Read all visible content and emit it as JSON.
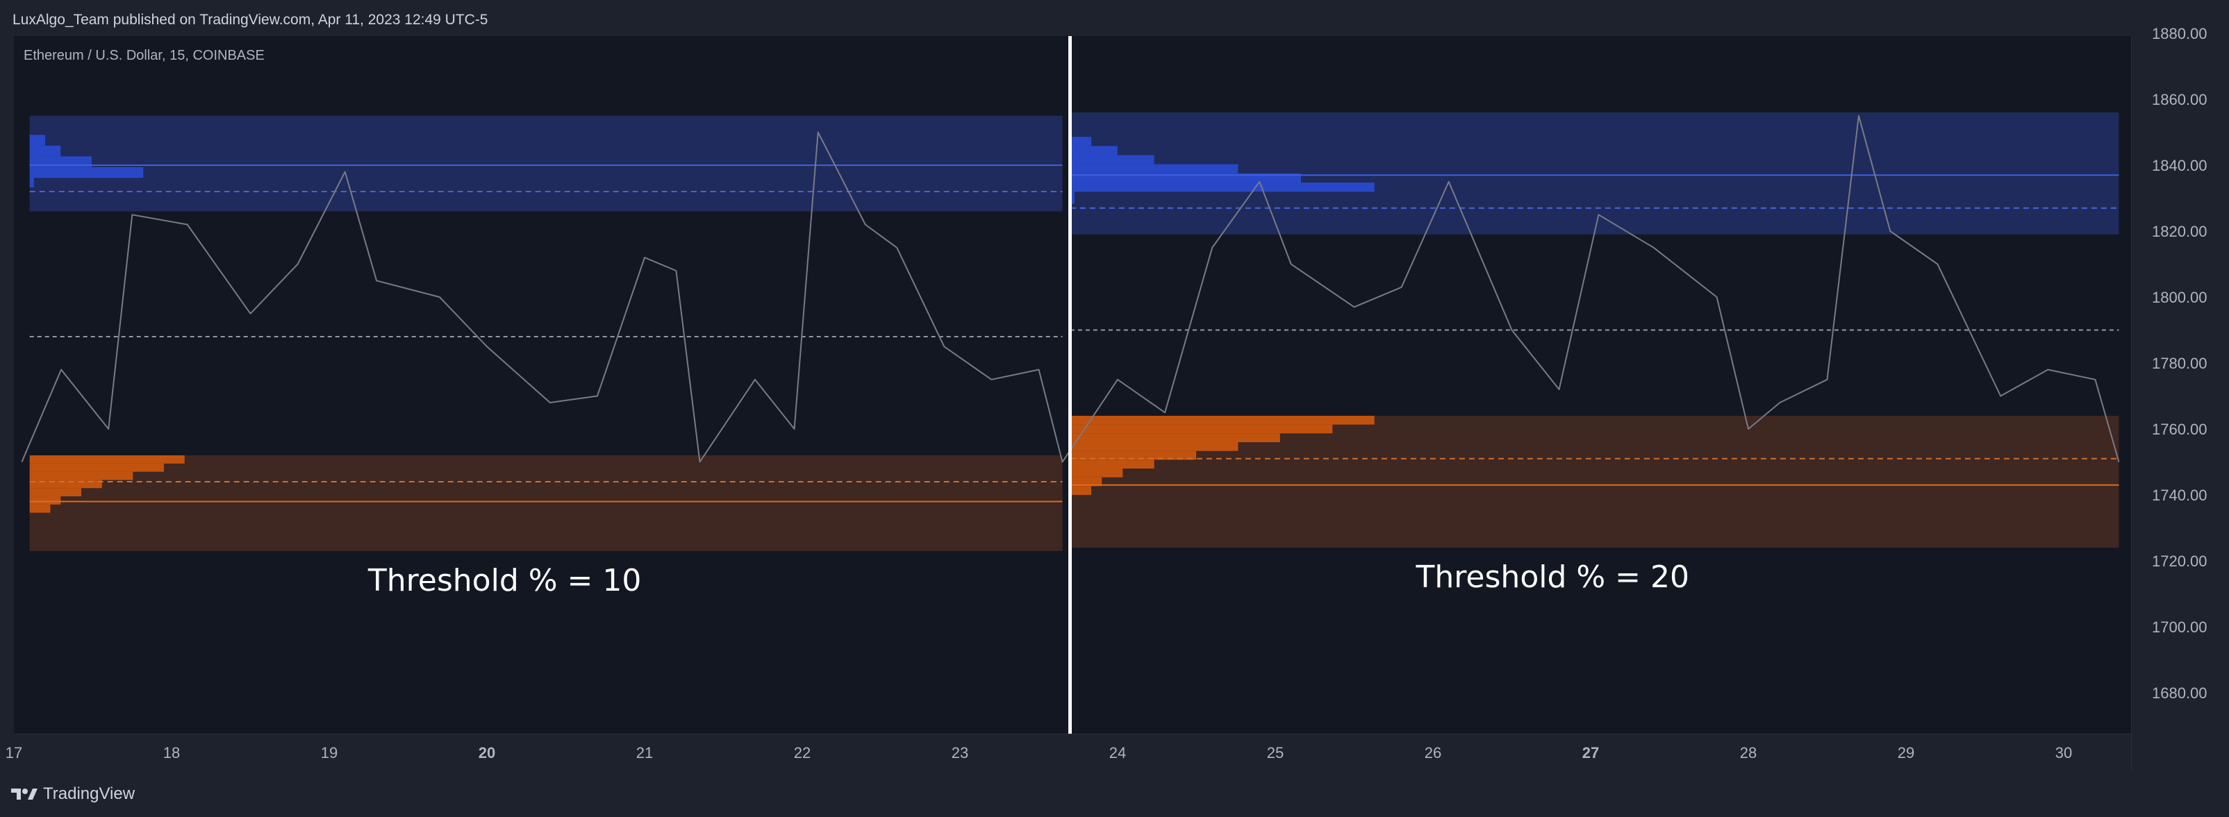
{
  "header": {
    "published_text": "LuxAlgo_Team published on TradingView.com, Apr 11, 2023 12:49 UTC-5"
  },
  "footer": {
    "brand": "TradingView",
    "logo_icon": "tradingview-logo-icon"
  },
  "colors": {
    "background": "#131722",
    "blue_zone": "#1f2b5c",
    "blue_profile": "#2848c8",
    "orange_zone": "#3f2722",
    "orange_profile": "#c2530f",
    "price_line": "#787b86",
    "divider": "#ffffff"
  },
  "chart_data": {
    "type": "line",
    "symbol_legend": "Ethereum / U.S. Dollar, 15, COINBASE",
    "y_ticks": [
      1880,
      1860,
      1840,
      1820,
      1800,
      1780,
      1760,
      1740,
      1720,
      1700,
      1680
    ],
    "ylim": [
      1670,
      1885
    ],
    "x_ticks": [
      {
        "label": "17",
        "bold": false
      },
      {
        "label": "18",
        "bold": false
      },
      {
        "label": "19",
        "bold": false
      },
      {
        "label": "20",
        "bold": true
      },
      {
        "label": "21",
        "bold": false
      },
      {
        "label": "22",
        "bold": false
      },
      {
        "label": "23",
        "bold": false
      },
      {
        "label": "24",
        "bold": false
      },
      {
        "label": "25",
        "bold": false
      },
      {
        "label": "26",
        "bold": false
      },
      {
        "label": "27",
        "bold": true
      },
      {
        "label": "28",
        "bold": false
      },
      {
        "label": "29",
        "bold": false
      },
      {
        "label": "30",
        "bold": false
      }
    ],
    "price_series": {
      "x": [
        17.05,
        17.3,
        17.6,
        17.75,
        18.1,
        18.5,
        18.8,
        19.1,
        19.3,
        19.7,
        20.0,
        20.4,
        20.7,
        21.0,
        21.2,
        21.35,
        21.7,
        21.95,
        22.1,
        22.4,
        22.6,
        22.9,
        23.2,
        23.5,
        23.65,
        24.0,
        24.3,
        24.6,
        24.9,
        25.1,
        25.5,
        25.8,
        26.1,
        26.5,
        26.8,
        27.05,
        27.4,
        27.8,
        28.0,
        28.2,
        28.5,
        28.7,
        28.9,
        29.2,
        29.4,
        29.6,
        29.9,
        30.2,
        30.35
      ],
      "y": [
        1750,
        1778,
        1760,
        1825,
        1822,
        1795,
        1810,
        1838,
        1805,
        1800,
        1785,
        1768,
        1770,
        1812,
        1808,
        1750,
        1775,
        1760,
        1850,
        1822,
        1815,
        1785,
        1775,
        1778,
        1750,
        1775,
        1765,
        1815,
        1835,
        1810,
        1797,
        1803,
        1835,
        1790,
        1772,
        1825,
        1815,
        1800,
        1760,
        1768,
        1775,
        1855,
        1820,
        1810,
        1790,
        1770,
        1778,
        1775,
        1750
      ]
    },
    "panels": [
      {
        "annotation": "Threshold % = 10",
        "x_range": [
          17.1,
          23.65
        ],
        "supply_zone": {
          "top": 1855,
          "bottom": 1826,
          "line": 1840,
          "dashed": 1832
        },
        "demand_zone": {
          "top": 1752,
          "bottom": 1723,
          "line": 1738,
          "dashed": 1744
        },
        "mid_line": 1788,
        "supply_profile_width_frac": [
          0.015,
          0.03,
          0.06,
          0.11
        ],
        "demand_profile_width_frac": [
          0.15,
          0.13,
          0.1,
          0.07,
          0.05,
          0.03,
          0.02
        ]
      },
      {
        "annotation": "Threshold % = 20",
        "x_range": [
          23.7,
          30.35
        ],
        "supply_zone": {
          "top": 1856,
          "bottom": 1819,
          "line": 1837,
          "dashed": 1827
        },
        "demand_zone": {
          "top": 1764,
          "bottom": 1724,
          "line": 1743,
          "dashed": 1751
        },
        "mid_line": 1790,
        "supply_profile_width_frac": [
          0.02,
          0.045,
          0.08,
          0.16,
          0.22,
          0.29
        ],
        "demand_profile_width_frac": [
          0.29,
          0.25,
          0.2,
          0.16,
          0.12,
          0.08,
          0.05,
          0.03,
          0.02
        ]
      }
    ]
  }
}
